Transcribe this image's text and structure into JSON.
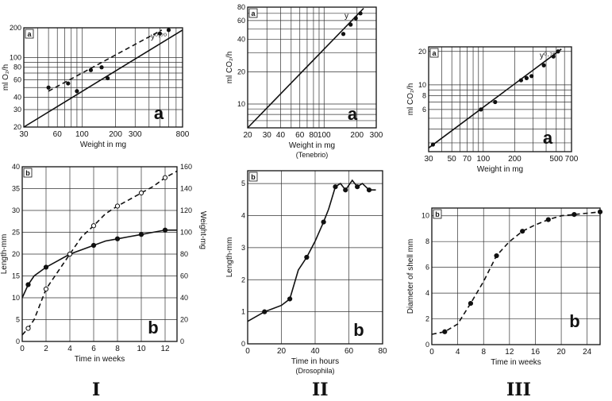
{
  "figure": {
    "columns": [
      {
        "numeral": "I"
      },
      {
        "numeral": "II"
      },
      {
        "numeral": "III"
      }
    ]
  },
  "chart_data": [
    {
      "id": "Ia",
      "type": "scatter",
      "scale": "log-log",
      "panel_letter": "a",
      "corner_letter": "a",
      "xlabel": "Weight in mg",
      "ylabel": "ml O₂/h",
      "xlim": [
        30,
        800
      ],
      "ylim": [
        20,
        200
      ],
      "xticks": [
        30,
        60,
        100,
        200,
        300,
        800
      ],
      "xticklabels": [
        "30",
        "60",
        "100",
        "200",
        "300",
        "800"
      ],
      "yticks": [
        20,
        30,
        40,
        60,
        80,
        100,
        200
      ],
      "yticklabels": [
        "20",
        "30",
        "40",
        "60",
        "80",
        "100",
        "200"
      ],
      "fit_label": "y⁰·⁷⁰",
      "series": [
        {
          "style": "solid",
          "kind": "line",
          "x": [
            30,
            800
          ],
          "y": [
            20,
            190
          ]
        },
        {
          "style": "dashed",
          "kind": "line",
          "x": [
            50,
            520
          ],
          "y": [
            46,
            190
          ]
        },
        {
          "kind": "points",
          "x": [
            50,
            75,
            90,
            120,
            150,
            170,
            500,
            600
          ],
          "y": [
            50,
            55,
            46,
            75,
            80,
            62,
            175,
            190
          ]
        }
      ]
    },
    {
      "id": "IIa",
      "type": "scatter",
      "scale": "log-log",
      "panel_letter": "a",
      "corner_letter": "a",
      "xlabel": "Weight in mg",
      "xsublabel": "(Tenebrio)",
      "ylabel": "ml CO₂/h",
      "xlim": [
        20,
        300
      ],
      "ylim": [
        6,
        80
      ],
      "xticks": [
        20,
        30,
        40,
        60,
        80,
        100,
        200,
        300
      ],
      "xticklabels": [
        "20",
        "30",
        "40",
        "60",
        "80",
        "100",
        "200",
        "300"
      ],
      "yticks": [
        10,
        20,
        40,
        60,
        80
      ],
      "yticklabels": [
        "10",
        "20",
        "40",
        "60",
        "80"
      ],
      "fit_label": "y",
      "series": [
        {
          "style": "solid",
          "kind": "line",
          "x": [
            20,
            230
          ],
          "y": [
            6,
            78
          ]
        },
        {
          "kind": "points",
          "x": [
            150,
            175,
            195,
            215
          ],
          "y": [
            45,
            55,
            63,
            70
          ]
        }
      ]
    },
    {
      "id": "IIIa",
      "type": "scatter",
      "scale": "log-log",
      "panel_letter": "a",
      "corner_letter": "a",
      "xlabel": "Weight in mg",
      "ylabel": "ml CO₂/h",
      "xlim": [
        30,
        700
      ],
      "ylim": [
        2.5,
        22
      ],
      "xticks": [
        30,
        50,
        70,
        100,
        200,
        500,
        700
      ],
      "xticklabels": [
        "30",
        "50",
        "70",
        "100",
        "200",
        "500",
        "700"
      ],
      "yticks": [
        6,
        8,
        10,
        20
      ],
      "yticklabels": [
        "6",
        "8",
        "10",
        "20"
      ],
      "fit_label": "y⁰·⁷⁵",
      "series": [
        {
          "style": "solid",
          "kind": "line",
          "x": [
            30,
            560
          ],
          "y": [
            2.7,
            21
          ]
        },
        {
          "kind": "points",
          "x": [
            33,
            95,
            130,
            230,
            260,
            290,
            380,
            470,
            520
          ],
          "y": [
            2.9,
            6,
            7,
            11,
            11.5,
            12,
            15,
            18,
            20
          ]
        }
      ]
    },
    {
      "id": "Ib",
      "type": "line",
      "panel_letter": "b",
      "corner_letter": "b",
      "xlabel": "Time in weeks",
      "ylabel": "Length-mm",
      "y2label": "Weight-mg",
      "xlim": [
        0,
        13
      ],
      "ylim": [
        0,
        40
      ],
      "y2lim": [
        0,
        160
      ],
      "xticks": [
        0,
        2,
        4,
        6,
        8,
        10,
        12
      ],
      "xticklabels": [
        "0",
        "2",
        "4",
        "6",
        "8",
        "10",
        "12"
      ],
      "yticks": [
        0,
        5,
        10,
        15,
        20,
        25,
        30,
        35,
        40
      ],
      "yticklabels": [
        "0",
        "5",
        "10",
        "15",
        "20",
        "25",
        "30",
        "35",
        "40"
      ],
      "y2ticks": [
        0,
        20,
        40,
        60,
        80,
        100,
        120,
        140,
        160
      ],
      "y2ticklabels": [
        "0",
        "20",
        "40",
        "60",
        "80",
        "100",
        "120",
        "140",
        "160"
      ],
      "series": [
        {
          "style": "solid",
          "axis": "left",
          "marker": "filled",
          "x": [
            0,
            0.5,
            1,
            2,
            3,
            4,
            5,
            6,
            7,
            8,
            9,
            10,
            11,
            12,
            13
          ],
          "y": [
            10,
            13,
            15,
            17,
            18.5,
            20,
            21,
            22,
            23,
            23.5,
            24,
            24.5,
            25,
            25.5,
            25.5
          ]
        },
        {
          "style": "dashed",
          "axis": "right",
          "marker": "open",
          "x": [
            0,
            0.5,
            1,
            2,
            3,
            4,
            5,
            6,
            7,
            8,
            9,
            10,
            11,
            12,
            13
          ],
          "y": [
            6,
            12,
            20,
            48,
            64,
            80,
            96,
            106,
            117,
            124,
            130,
            136,
            142,
            150,
            156
          ]
        }
      ]
    },
    {
      "id": "IIb",
      "type": "line",
      "panel_letter": "b",
      "corner_letter": "b",
      "xlabel": "Time in hours",
      "xsublabel": "(Drosophila)",
      "ylabel": "Length-mm",
      "xlim": [
        0,
        80
      ],
      "ylim": [
        0,
        5.4
      ],
      "xticks": [
        0,
        20,
        40,
        60,
        80
      ],
      "xticklabels": [
        "0",
        "20",
        "40",
        "60",
        "80"
      ],
      "yticks": [
        0,
        1,
        2,
        3,
        4,
        5
      ],
      "yticklabels": [
        "0",
        "1",
        "2",
        "3",
        "4",
        "5"
      ],
      "series": [
        {
          "style": "solid",
          "marker": "filled",
          "x": [
            0,
            10,
            20,
            25,
            30,
            35,
            40,
            45,
            48,
            52,
            55,
            58,
            62,
            65,
            68,
            72,
            76
          ],
          "y": [
            0.7,
            1.0,
            1.2,
            1.4,
            2.3,
            2.7,
            3.2,
            3.8,
            4.2,
            4.9,
            5.0,
            4.8,
            5.1,
            4.9,
            5.0,
            4.8,
            4.8
          ]
        }
      ]
    },
    {
      "id": "IIIb",
      "type": "line",
      "panel_letter": "b",
      "corner_letter": "b",
      "xlabel": "Time in weeks",
      "ylabel": "Diameter of shell   mm",
      "xlim": [
        0,
        26
      ],
      "ylim": [
        0,
        10.6
      ],
      "xticks": [
        0,
        4,
        8,
        12,
        16,
        20,
        24
      ],
      "xticklabels": [
        "0",
        "4",
        "8",
        "12",
        "16",
        "20",
        "24"
      ],
      "yticks": [
        0,
        2,
        4,
        6,
        8,
        10
      ],
      "yticklabels": [
        "0",
        "2",
        "4",
        "6",
        "8",
        "10"
      ],
      "series": [
        {
          "style": "dashed",
          "marker": "filled",
          "x": [
            0,
            2,
            4,
            6,
            8,
            10,
            12,
            14,
            16,
            18,
            20,
            22,
            24,
            26
          ],
          "y": [
            0.8,
            1.0,
            1.6,
            3.2,
            4.9,
            6.9,
            8.0,
            8.8,
            9.3,
            9.7,
            10.0,
            10.1,
            10.2,
            10.3
          ]
        }
      ]
    }
  ]
}
